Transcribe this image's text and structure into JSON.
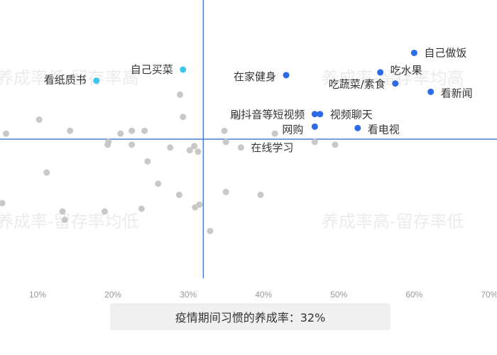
{
  "footer": {
    "label": "疫情期间习惯的养成率：32%"
  },
  "chart_data": {
    "type": "scatter",
    "x_unit": "percent",
    "xlim": [
      5,
      71
    ],
    "ylim": [
      0,
      100
    ],
    "x_ticks": [
      "10%",
      "20%",
      "30%",
      "40%",
      "50%",
      "60%",
      "70%"
    ],
    "divider": {
      "x": 32,
      "y": 50
    },
    "quadrant_labels": {
      "top_left": "养成率低-留存率高",
      "top_right": "养成率-留存率均高",
      "bottom_left": "养成率-留存率均低",
      "bottom_right": "养成率高-留存率低"
    },
    "colors": {
      "highlight_right": "#2d6ae6",
      "highlight_left": "#3bc5ec",
      "other": "#c8c8c8",
      "divider": "#4a7fd6"
    },
    "labeled_points": [
      {
        "label": "自己做饭",
        "x": 60,
        "y": 81,
        "group": "highlight_right"
      },
      {
        "label": "吃水果",
        "x": 55.5,
        "y": 74,
        "group": "highlight_right"
      },
      {
        "label": "吃蔬菜/素食",
        "x": 57.5,
        "y": 70,
        "group": "highlight_right"
      },
      {
        "label": "看新闻",
        "x": 62.2,
        "y": 67,
        "group": "highlight_right"
      },
      {
        "label": "在家健身",
        "x": 43,
        "y": 73,
        "group": "highlight_right"
      },
      {
        "label": "刷抖音等短视频",
        "x": 46.8,
        "y": 59,
        "group": "highlight_right"
      },
      {
        "label": "视频聊天",
        "x": 47.5,
        "y": 59,
        "group": "highlight_right"
      },
      {
        "label": "网购",
        "x": 46.8,
        "y": 54.5,
        "group": "highlight_right"
      },
      {
        "label": "看电视",
        "x": 52.5,
        "y": 54,
        "group": "highlight_right"
      },
      {
        "label": "自己买菜",
        "x": 29.3,
        "y": 75,
        "group": "highlight_left"
      },
      {
        "label": "看纸质书",
        "x": 17.8,
        "y": 71,
        "group": "highlight_left"
      },
      {
        "label": "在线学习",
        "x": 37,
        "y": 47,
        "group": "other"
      }
    ],
    "other_points": [
      [
        10.2,
        57
      ],
      [
        5.8,
        52
      ],
      [
        14.3,
        53
      ],
      [
        21,
        52
      ],
      [
        22.5,
        53
      ],
      [
        24.2,
        53
      ],
      [
        19.3,
        48
      ],
      [
        19.4,
        49
      ],
      [
        22.5,
        48
      ],
      [
        24.6,
        42
      ],
      [
        28.9,
        66
      ],
      [
        29.3,
        58
      ],
      [
        27.6,
        47
      ],
      [
        30.2,
        46
      ],
      [
        30.8,
        47.5
      ],
      [
        31.3,
        45.5
      ],
      [
        34.8,
        53
      ],
      [
        35,
        49
      ],
      [
        36.5,
        58
      ],
      [
        41.5,
        52
      ],
      [
        46.8,
        49
      ],
      [
        49.5,
        48
      ],
      [
        11.2,
        38
      ],
      [
        5.3,
        27
      ],
      [
        13.3,
        24
      ],
      [
        13.6,
        21
      ],
      [
        18.9,
        24
      ],
      [
        23.8,
        25
      ],
      [
        26,
        34
      ],
      [
        28.8,
        30
      ],
      [
        30.9,
        25.5
      ],
      [
        31.5,
        26.5
      ],
      [
        32.9,
        17
      ],
      [
        35,
        31
      ],
      [
        39.6,
        30
      ]
    ]
  }
}
